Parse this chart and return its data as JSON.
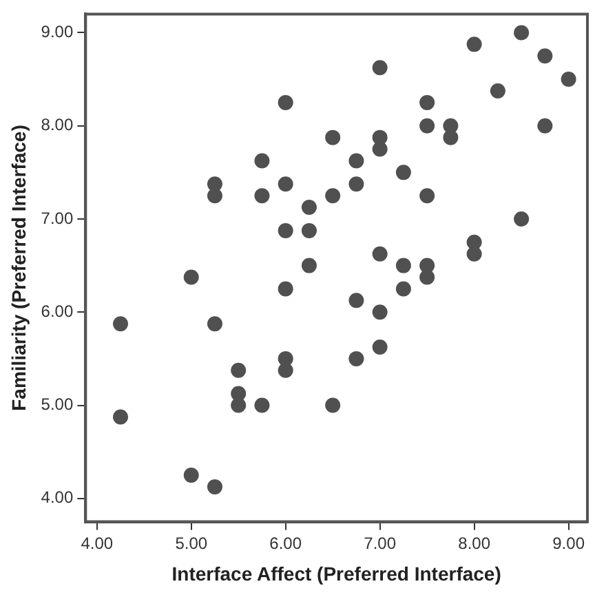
{
  "chart_data": {
    "type": "scatter",
    "xlabel": "Interface Affect (Preferred Interface)",
    "ylabel": "Familiarity (Preferred Interface)",
    "xlim": [
      3.88,
      9.2
    ],
    "ylim": [
      3.75,
      9.2
    ],
    "xticks": [
      {
        "value": 4,
        "label": "4.00"
      },
      {
        "value": 5,
        "label": "5.00"
      },
      {
        "value": 6,
        "label": "6.00"
      },
      {
        "value": 7,
        "label": "7.00"
      },
      {
        "value": 8,
        "label": "8.00"
      },
      {
        "value": 9,
        "label": "9.00"
      }
    ],
    "yticks": [
      {
        "value": 4,
        "label": "4.00"
      },
      {
        "value": 5,
        "label": "5.00"
      },
      {
        "value": 6,
        "label": "6.00"
      },
      {
        "value": 7,
        "label": "7.00"
      },
      {
        "value": 8,
        "label": "8.00"
      },
      {
        "value": 9,
        "label": "9.00"
      }
    ],
    "grid": false,
    "legend": false,
    "marker": "circle",
    "series": [
      {
        "color": "#505050",
        "x": [
          4.25,
          4.25,
          5.0,
          5.25,
          5.0,
          5.25,
          5.5,
          5.5,
          5.5,
          5.75,
          6.0,
          6.0,
          6.0,
          6.5,
          6.25,
          6.0,
          6.5,
          5.75,
          5.25,
          5.25,
          5.75,
          6.0,
          6.25,
          6.5,
          6.0,
          6.25,
          8.5,
          8.0,
          8.75,
          9.0,
          8.25,
          7.0,
          7.5,
          7.5,
          7.75,
          7.75,
          8.75,
          7.0,
          7.0,
          6.75,
          6.75,
          7.25,
          7.5,
          8.5,
          7.0,
          7.25,
          7.5,
          7.5,
          8.0,
          8.0,
          7.25,
          6.75,
          7.0,
          7.0,
          6.75
        ],
        "values": [
          5.875,
          4.875,
          6.375,
          5.875,
          4.25,
          4.125,
          5.375,
          5.125,
          5.0,
          5.0,
          5.5,
          5.375,
          6.25,
          5.0,
          6.5,
          8.25,
          7.875,
          7.625,
          7.375,
          7.25,
          7.25,
          7.375,
          7.125,
          7.25,
          6.875,
          6.875,
          9.0,
          8.875,
          8.75,
          8.5,
          8.375,
          8.625,
          8.25,
          8.0,
          8.0,
          7.875,
          8.0,
          7.875,
          7.75,
          7.625,
          7.375,
          7.5,
          7.25,
          7.0,
          6.625,
          6.5,
          6.5,
          6.375,
          6.75,
          6.625,
          6.25,
          6.125,
          6.0,
          5.625,
          5.5
        ]
      }
    ]
  }
}
